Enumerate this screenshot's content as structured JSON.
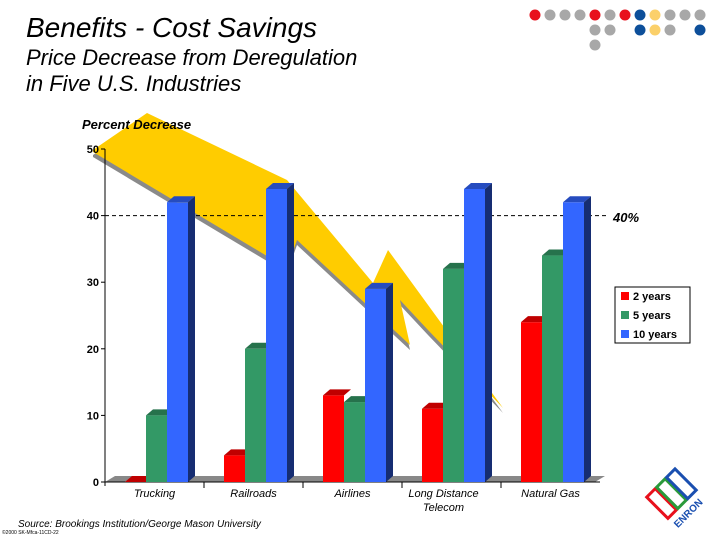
{
  "slide": {
    "title": "Benefits - Cost Savings",
    "subtitle_line1": "Price Decrease from Deregulation",
    "subtitle_line2": "in Five U.S. Industries",
    "source": "Source: Brookings Institution/George Mason University",
    "code": "©2000 SK-Mfca-11CD-22",
    "logo": "ENRON"
  },
  "decor_dot_colors": {
    "red": "#e8101c",
    "grey": "#a8a8a8",
    "blue": "#0d4f9a",
    "yellow": "#fbd06a"
  },
  "chart_data": {
    "type": "bar",
    "ylabel": "Percent Decrease",
    "ylim": [
      0,
      50
    ],
    "yticks": [
      "0",
      "10",
      "20",
      "30",
      "40",
      "50"
    ],
    "categories": [
      "Trucking",
      "Railroads",
      "Airlines",
      "Long Distance Telecom",
      "Natural Gas"
    ],
    "series": [
      {
        "name": "2 years",
        "color": "#ff0000",
        "values": [
          0,
          4,
          13,
          11,
          24
        ]
      },
      {
        "name": "5 years",
        "color": "#339966",
        "values": [
          10,
          20,
          12,
          32,
          34
        ]
      },
      {
        "name": "10 years",
        "color": "#3366ff",
        "values": [
          42,
          44,
          29,
          44,
          42
        ]
      }
    ],
    "reference_line": {
      "value": 40,
      "label": "40%"
    },
    "legend": "right",
    "grid": false,
    "three_d": true
  }
}
